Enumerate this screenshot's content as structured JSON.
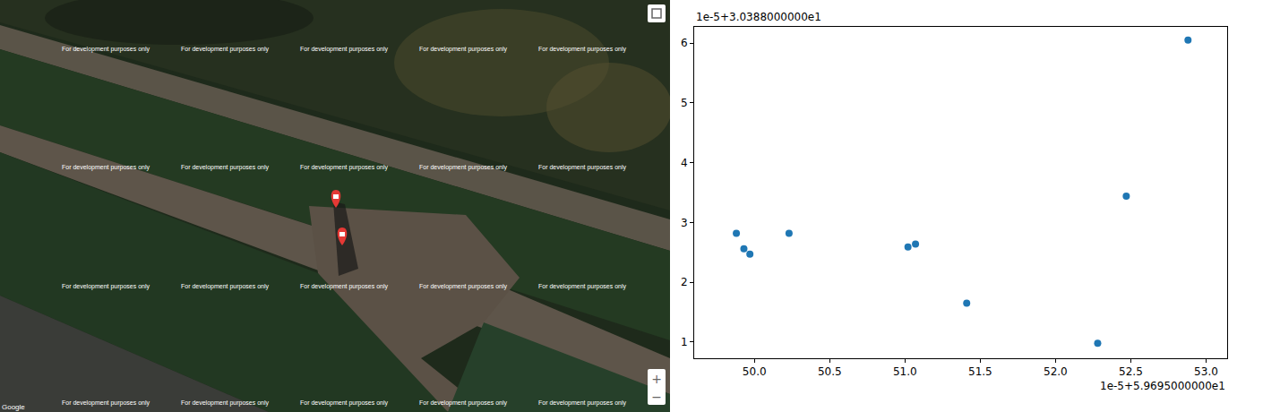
{
  "chart_data": {
    "type": "scatter",
    "x": [
      49.88,
      49.93,
      49.97,
      50.23,
      51.02,
      51.07,
      51.41,
      52.28,
      52.47,
      52.88
    ],
    "values": [
      2.82,
      2.56,
      2.47,
      2.82,
      2.59,
      2.64,
      1.65,
      0.98,
      3.44,
      6.05
    ],
    "color": "#1f77b4",
    "marker": "circle",
    "xlim": [
      49.6,
      53.14
    ],
    "xticks": [
      {
        "value": 50,
        "label": "50.0"
      },
      {
        "value": 50.5,
        "label": "50.5"
      },
      {
        "value": 51,
        "label": "51.0"
      },
      {
        "value": 51.5,
        "label": "51.5"
      },
      {
        "value": 52,
        "label": "52.0"
      },
      {
        "value": 52.5,
        "label": "52.5"
      },
      {
        "value": 53,
        "label": "53.0"
      }
    ],
    "ylim": [
      0.73,
      6.27
    ],
    "yticks": [
      1,
      2,
      3,
      4,
      5,
      6
    ],
    "grid": false,
    "annotations": [
      {
        "text": "1e-5+3.0388000000e1",
        "axis": "y"
      },
      {
        "text": "1e-5+5.9695000000e1",
        "axis": "x"
      }
    ]
  },
  "map": {
    "watermark": "For development purposes only",
    "attribution": "Google",
    "zoom_in": "+",
    "zoom_out": "−"
  }
}
